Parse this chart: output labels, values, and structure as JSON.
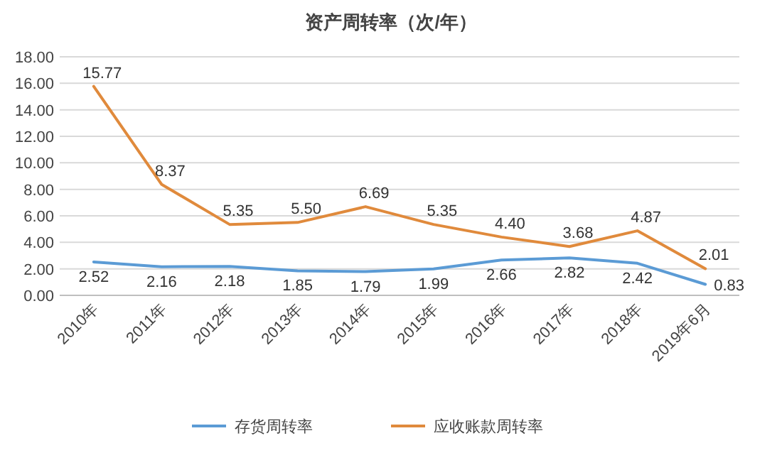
{
  "chart_data": {
    "type": "line",
    "title": "资产周转率（次/年）",
    "categories": [
      "2010年",
      "2011年",
      "2012年",
      "2013年",
      "2014年",
      "2015年",
      "2016年",
      "2017年",
      "2018年",
      "2019年6月"
    ],
    "series": [
      {
        "name": "存货周转率",
        "color": "#5b9bd5",
        "values": [
          2.52,
          2.16,
          2.18,
          1.85,
          1.79,
          1.99,
          2.66,
          2.82,
          2.42,
          0.83
        ],
        "value_labels": [
          "2.52",
          "2.16",
          "2.18",
          "1.85",
          "1.79",
          "1.99",
          "2.66",
          "2.82",
          "2.42",
          "0.83"
        ]
      },
      {
        "name": "应收账款周转率",
        "color": "#e08a3c",
        "values": [
          15.77,
          8.37,
          5.35,
          5.5,
          6.69,
          5.35,
          4.4,
          3.68,
          4.87,
          2.01
        ],
        "value_labels": [
          "15.77",
          "8.37",
          "5.35",
          "5.50",
          "6.69",
          "5.35",
          "4.40",
          "3.68",
          "4.87",
          "2.01"
        ]
      }
    ],
    "ylim": [
      0,
      18
    ],
    "yticks": [
      {
        "value": 0,
        "label": "0.00"
      },
      {
        "value": 2,
        "label": "2.00"
      },
      {
        "value": 4,
        "label": "4.00"
      },
      {
        "value": 6,
        "label": "6.00"
      },
      {
        "value": 8,
        "label": "8.00"
      },
      {
        "value": 10,
        "label": "10.00"
      },
      {
        "value": 12,
        "label": "12.00"
      },
      {
        "value": 14,
        "label": "14.00"
      },
      {
        "value": 16,
        "label": "16.00"
      },
      {
        "value": 18,
        "label": "18.00"
      }
    ],
    "grid": "y",
    "legend": "bottom",
    "marker": "none",
    "line_style": "solid"
  }
}
